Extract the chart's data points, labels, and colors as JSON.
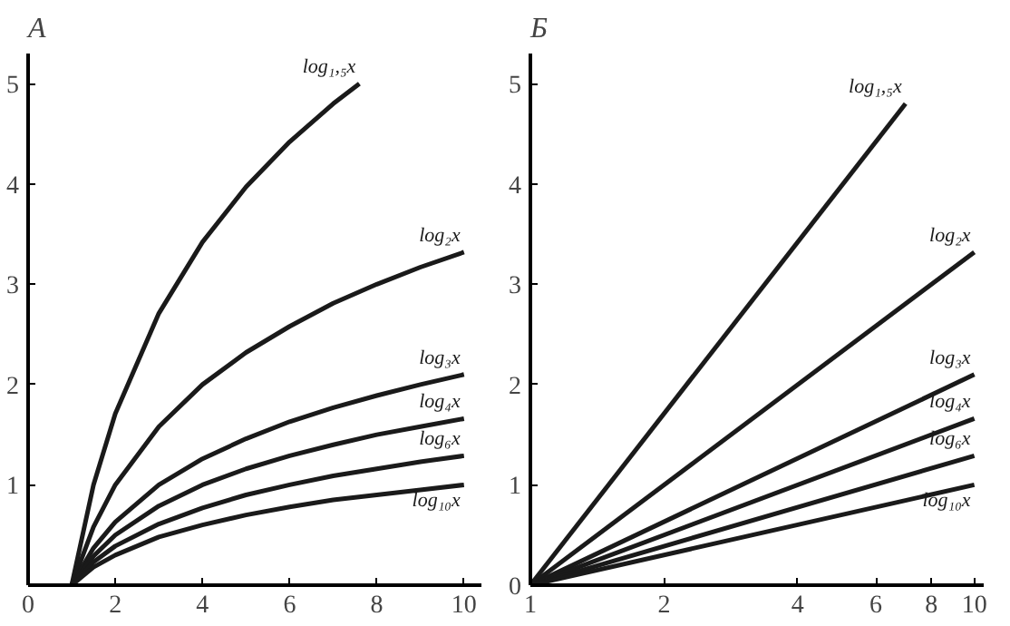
{
  "chart_data": [
    {
      "type": "line",
      "title": "А",
      "x": [
        1,
        1.5,
        2,
        3,
        4,
        5,
        6,
        7,
        8,
        9,
        10
      ],
      "xlim": [
        0,
        10.4
      ],
      "ylim": [
        0,
        5.3
      ],
      "xticks": [
        0,
        2,
        4,
        6,
        8,
        10
      ],
      "yticks": [
        1,
        2,
        3,
        4,
        5
      ],
      "grid": false,
      "legend": false,
      "series": [
        {
          "name": "log₁,₅x",
          "color": "#1a1a1a",
          "x": [
            1,
            1.5,
            2,
            3,
            4,
            5,
            6,
            7,
            7.6
          ],
          "values": [
            0,
            1,
            1.71,
            2.71,
            3.42,
            3.97,
            4.42,
            4.8,
            5.0
          ]
        },
        {
          "name": "log₂x",
          "color": "#1a1a1a",
          "values": [
            0,
            0.58,
            1,
            1.58,
            2,
            2.32,
            2.58,
            2.81,
            3,
            3.17,
            3.32
          ]
        },
        {
          "name": "log₃x",
          "color": "#1a1a1a",
          "values": [
            0,
            0.37,
            0.63,
            1,
            1.26,
            1.46,
            1.63,
            1.77,
            1.89,
            2,
            2.1
          ]
        },
        {
          "name": "log₄x",
          "color": "#1a1a1a",
          "values": [
            0,
            0.29,
            0.5,
            0.79,
            1,
            1.16,
            1.29,
            1.4,
            1.5,
            1.58,
            1.66
          ]
        },
        {
          "name": "log₆x",
          "color": "#1a1a1a",
          "values": [
            0,
            0.23,
            0.39,
            0.61,
            0.77,
            0.9,
            1,
            1.09,
            1.16,
            1.23,
            1.29
          ]
        },
        {
          "name": "log₁₀x",
          "color": "#1a1a1a",
          "values": [
            0,
            0.18,
            0.3,
            0.48,
            0.6,
            0.7,
            0.78,
            0.85,
            0.9,
            0.95,
            1
          ]
        }
      ]
    },
    {
      "type": "line",
      "title": "Б",
      "log": "x",
      "x": [
        1,
        10
      ],
      "xlim": [
        1,
        10.5
      ],
      "ylim": [
        0,
        5.3
      ],
      "xticks": [
        1,
        2,
        4,
        6,
        8,
        10
      ],
      "yticks": [
        0,
        1,
        2,
        3,
        4,
        5
      ],
      "grid": false,
      "legend": false,
      "series": [
        {
          "name": "log₁,₅x",
          "color": "#1a1a1a",
          "x": [
            1,
            7
          ],
          "values": [
            0,
            4.8
          ]
        },
        {
          "name": "log₂x",
          "color": "#1a1a1a",
          "values": [
            0,
            3.32
          ]
        },
        {
          "name": "log₃x",
          "color": "#1a1a1a",
          "values": [
            0,
            2.1
          ]
        },
        {
          "name": "log₄x",
          "color": "#1a1a1a",
          "values": [
            0,
            1.66
          ]
        },
        {
          "name": "log₆x",
          "color": "#1a1a1a",
          "values": [
            0,
            1.29
          ]
        },
        {
          "name": "log₁₀x",
          "color": "#1a1a1a",
          "values": [
            0,
            1
          ]
        }
      ]
    }
  ]
}
